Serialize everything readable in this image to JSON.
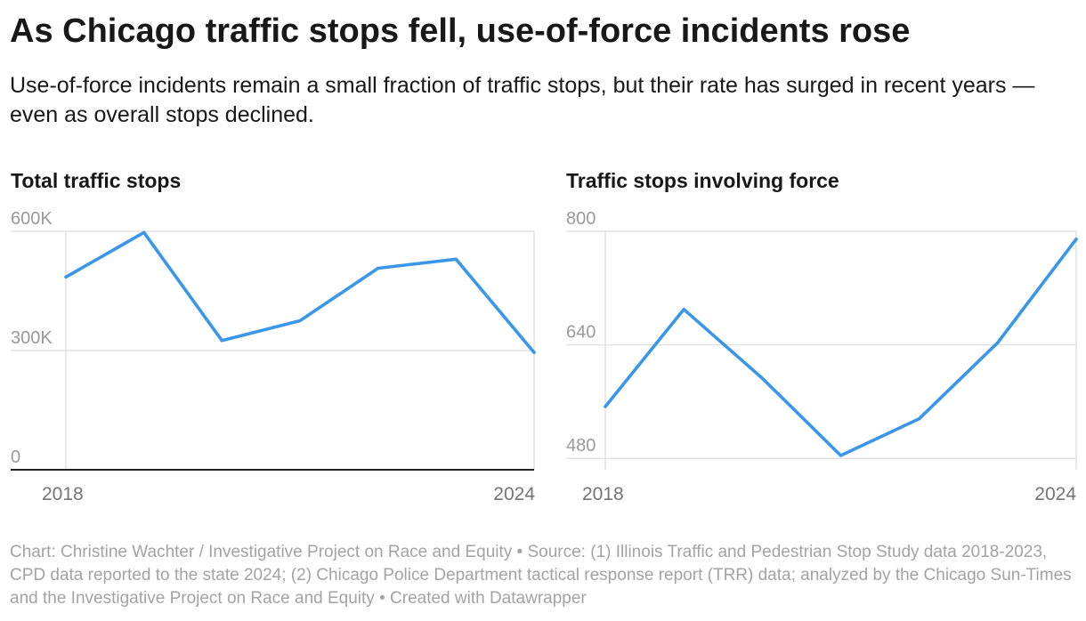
{
  "header": {
    "title": "As Chicago traffic stops fell, use-of-force incidents rose",
    "subtitle": "Use-of-force incidents remain a small fraction of traffic stops, but their rate has surged in recent years — even as overall stops declined."
  },
  "chart_data": [
    {
      "type": "line",
      "title": "Total traffic stops",
      "x": [
        2018,
        2019,
        2020,
        2021,
        2022,
        2023,
        2024
      ],
      "values": [
        485000,
        597000,
        325000,
        375000,
        507000,
        530000,
        295000
      ],
      "ylim": [
        0,
        600000
      ],
      "yticks": [
        0,
        300000,
        600000
      ],
      "ytick_labels": [
        "0",
        "300K",
        "600K"
      ],
      "xtick_labels": [
        "2018",
        "2024"
      ],
      "line_color": "#3a96e9"
    },
    {
      "type": "line",
      "title": "Traffic stops involving force",
      "x": [
        2018,
        2019,
        2020,
        2021,
        2022,
        2023,
        2024
      ],
      "values": [
        553,
        690,
        593,
        484,
        536,
        643,
        789
      ],
      "ylim": [
        464,
        800
      ],
      "yticks": [
        480,
        640,
        800
      ],
      "ytick_labels": [
        "480",
        "640",
        "800"
      ],
      "xtick_labels": [
        "2018",
        "2024"
      ],
      "line_color": "#3a96e9"
    }
  ],
  "footer": {
    "source": "Chart: Christine Wachter / Investigative Project on Race and Equity • Source: (1) Illinois Traffic and Pedestrian Stop Study data 2018-2023, CPD data reported to the state 2024; (2) Chicago Police Department tactical response report (TRR) data; analyzed by the Chicago Sun-Times and the Investigative Project on Race and Equity • Created with Datawrapper"
  }
}
